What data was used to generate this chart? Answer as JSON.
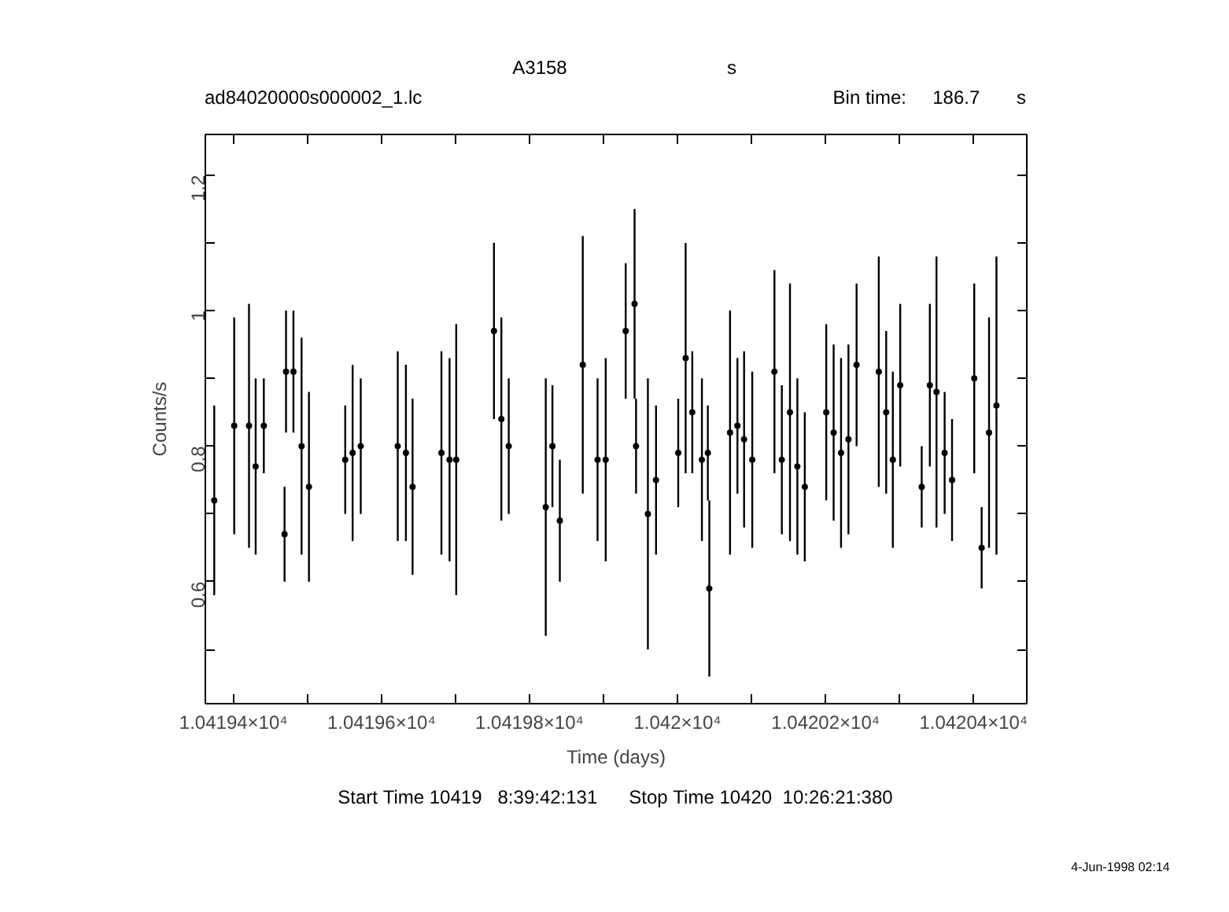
{
  "chart_data": {
    "type": "scatter",
    "title": "A3158",
    "xlabel": "Time (days)",
    "ylabel": "Counts/s",
    "annotations": [
      "s",
      "ad84020000s000002_1.lc",
      "Bin time:     186.7       s",
      "Start Time 10419   8:39:42:131      Stop Time 10420  10:26:21:380",
      "4-Jun-1998 02:14"
    ],
    "x": [
      10419.374,
      10419.401,
      10419.421,
      10419.43,
      10419.441,
      10419.469,
      10419.471,
      10419.481,
      10419.492,
      10419.502,
      10419.551,
      10419.561,
      10419.572,
      10419.622,
      10419.633,
      10419.642,
      10419.681,
      10419.692,
      10419.701,
      10419.752,
      10419.762,
      10419.772,
      10419.822,
      10419.831,
      10419.841,
      10419.872,
      10419.892,
      10419.903,
      10419.93,
      10419.942,
      10419.944,
      10419.96,
      10419.971,
      10420.001,
      10420.011,
      10420.02,
      10420.033,
      10420.041,
      10420.043,
      10420.071,
      10420.081,
      10420.09,
      10420.101,
      10420.131,
      10420.141,
      10420.152,
      10420.162,
      10420.172,
      10420.201,
      10420.211,
      10420.221,
      10420.231,
      10420.242,
      10420.272,
      10420.282,
      10420.291,
      10420.301,
      10420.33,
      10420.341,
      10420.35,
      10420.361,
      10420.371,
      10420.401,
      10420.411,
      10420.421,
      10420.431
    ],
    "series": [
      {
        "color": "#000000",
        "values": [
          0.72,
          0.83,
          0.83,
          0.77,
          0.83,
          0.67,
          0.91,
          0.91,
          0.8,
          0.74,
          0.78,
          0.79,
          0.8,
          0.8,
          0.79,
          0.74,
          0.79,
          0.78,
          0.78,
          0.97,
          0.84,
          0.8,
          0.71,
          0.8,
          0.69,
          0.92,
          0.78,
          0.78,
          0.97,
          1.01,
          0.8,
          0.7,
          0.75,
          0.79,
          0.93,
          0.85,
          0.78,
          0.79,
          0.59,
          0.82,
          0.83,
          0.81,
          0.78,
          0.91,
          0.78,
          0.85,
          0.77,
          0.74,
          0.85,
          0.82,
          0.79,
          0.81,
          0.92,
          0.91,
          0.85,
          0.78,
          0.89,
          0.74,
          0.89,
          0.88,
          0.79,
          0.75,
          0.9,
          0.65,
          0.82,
          0.86
        ],
        "errors": [
          0.14,
          0.16,
          0.18,
          0.13,
          0.07,
          0.07,
          0.09,
          0.09,
          0.16,
          0.14,
          0.08,
          0.13,
          0.1,
          0.14,
          0.13,
          0.13,
          0.15,
          0.15,
          0.2,
          0.13,
          0.15,
          0.1,
          0.19,
          0.09,
          0.09,
          0.19,
          0.12,
          0.15,
          0.1,
          0.14,
          0.07,
          0.2,
          0.11,
          0.08,
          0.17,
          0.09,
          0.12,
          0.07,
          0.13,
          0.18,
          0.1,
          0.13,
          0.13,
          0.15,
          0.11,
          0.19,
          0.13,
          0.11,
          0.13,
          0.13,
          0.14,
          0.14,
          0.12,
          0.17,
          0.12,
          0.13,
          0.12,
          0.06,
          0.12,
          0.2,
          0.09,
          0.09,
          0.14,
          0.06,
          0.17,
          0.22
        ]
      }
    ],
    "marker": "circle",
    "grid": false,
    "xlim": [
      10419.362,
      10420.472
    ],
    "xticks": [
      {
        "value": 10419.4,
        "label": "1.04194×10⁴"
      },
      {
        "value": 10419.5,
        "label": null
      },
      {
        "value": 10419.6,
        "label": "1.04196×10⁴"
      },
      {
        "value": 10419.7,
        "label": null
      },
      {
        "value": 10419.8,
        "label": "1.04198×10⁴"
      },
      {
        "value": 10419.9,
        "label": null
      },
      {
        "value": 10420.0,
        "label": "1.042×10⁴"
      },
      {
        "value": 10420.1,
        "label": null
      },
      {
        "value": 10420.2,
        "label": "1.04202×10⁴"
      },
      {
        "value": 10420.3,
        "label": null
      },
      {
        "value": 10420.4,
        "label": "1.04204×10⁴"
      }
    ],
    "ylim": [
      0.42,
      1.26
    ],
    "yticks": [
      {
        "value": 0.5,
        "label": null
      },
      0.6,
      {
        "value": 0.7,
        "label": null
      },
      0.8,
      {
        "value": 0.9,
        "label": null
      },
      1,
      {
        "value": 1.1,
        "label": null
      },
      1.2
    ]
  }
}
